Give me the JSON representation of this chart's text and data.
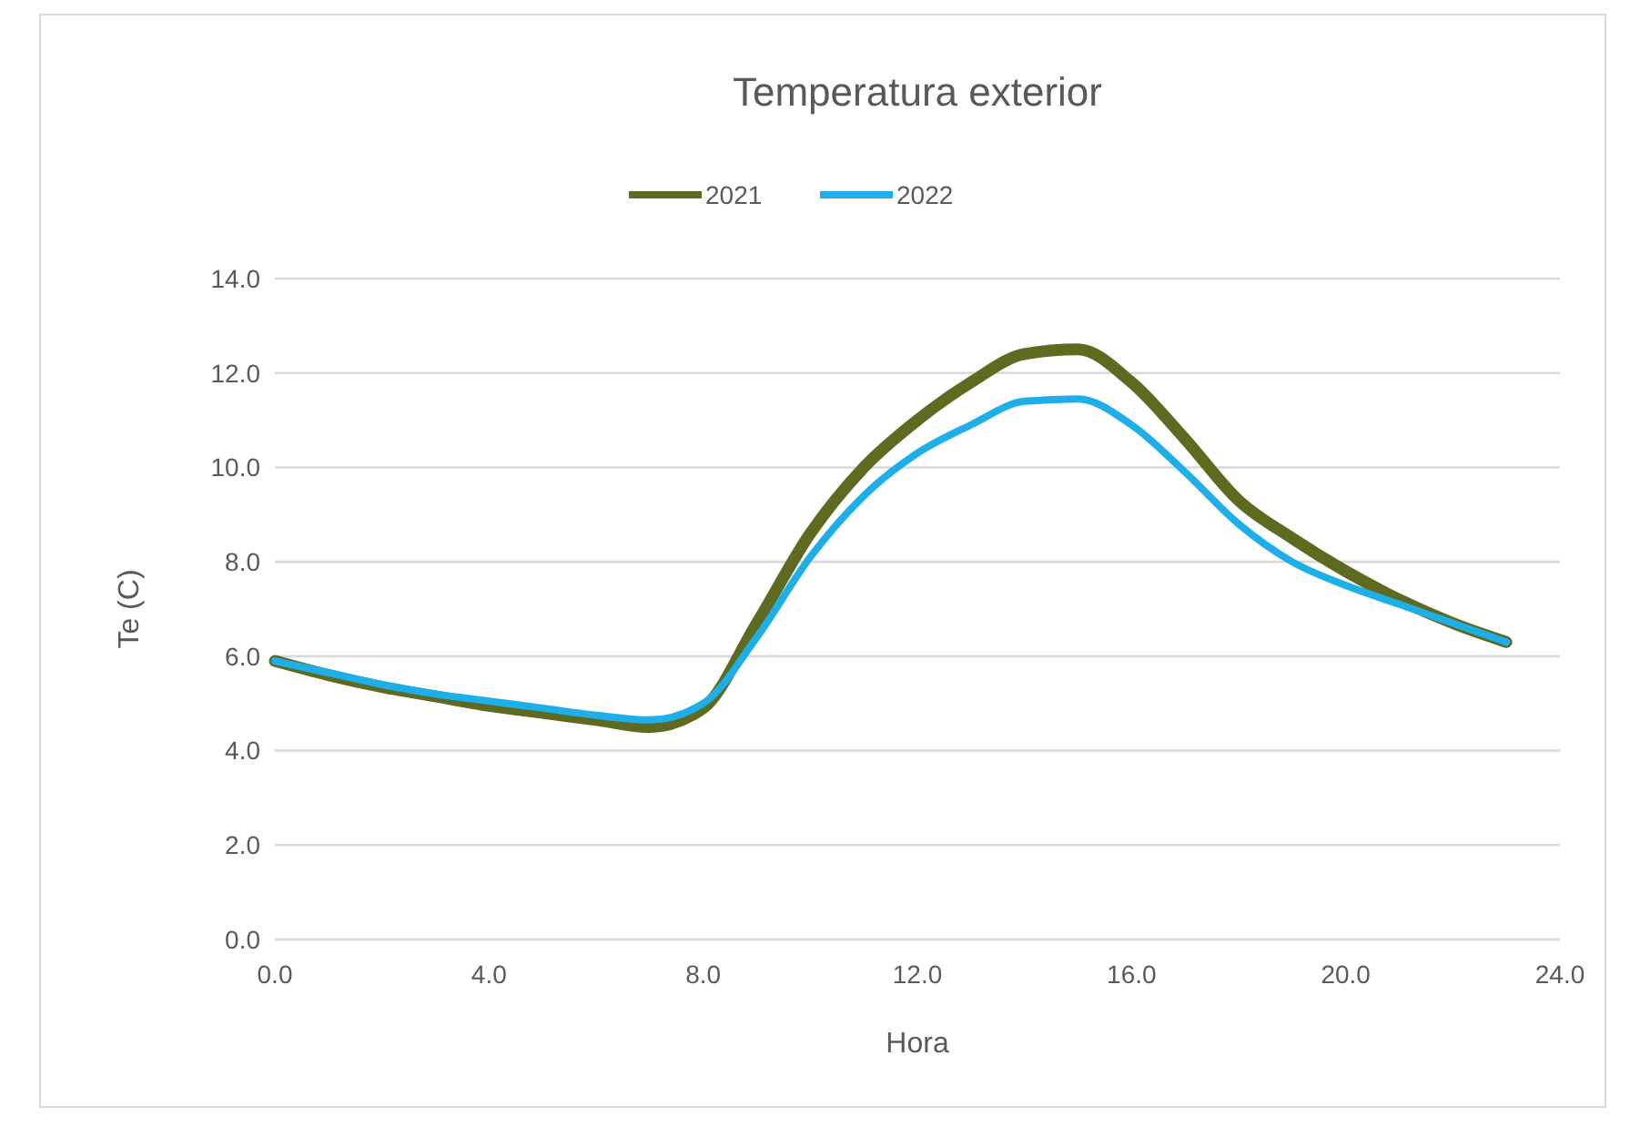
{
  "chart_data": {
    "type": "line",
    "title": "Temperatura exterior",
    "xlabel": "Hora",
    "ylabel": "Te (C)",
    "x": [
      0,
      1,
      2,
      3,
      4,
      5,
      6,
      7,
      8,
      9,
      10,
      11,
      12,
      13,
      14,
      15,
      16,
      17,
      18,
      19,
      20,
      21,
      22,
      23
    ],
    "series": [
      {
        "name": "2021",
        "color": "#5e6a1f",
        "values": [
          5.9,
          5.6,
          5.35,
          5.15,
          4.95,
          4.8,
          4.65,
          4.5,
          4.9,
          6.7,
          8.6,
          10.0,
          11.0,
          11.8,
          12.4,
          12.5,
          11.8,
          10.6,
          9.3,
          8.5,
          7.8,
          7.2,
          6.7,
          6.3
        ]
      },
      {
        "name": "2022",
        "color": "#1eaee8",
        "values": [
          5.9,
          5.65,
          5.4,
          5.2,
          5.05,
          4.9,
          4.75,
          4.65,
          5.0,
          6.4,
          8.1,
          9.4,
          10.3,
          10.9,
          11.4,
          11.45,
          10.9,
          9.9,
          8.8,
          8.0,
          7.5,
          7.1,
          6.7,
          6.3
        ]
      }
    ],
    "xlim": [
      0,
      24
    ],
    "xticks": [
      {
        "value": 0,
        "label": "0.0"
      },
      {
        "value": 4,
        "label": "4.0"
      },
      {
        "value": 8,
        "label": "8.0"
      },
      {
        "value": 12,
        "label": "12.0"
      },
      {
        "value": 16,
        "label": "16.0"
      },
      {
        "value": 20,
        "label": "20.0"
      },
      {
        "value": 24,
        "label": "24.0"
      }
    ],
    "ylim": [
      0,
      14
    ],
    "yticks": [
      {
        "value": 0,
        "label": "0.0"
      },
      {
        "value": 2,
        "label": "2.0"
      },
      {
        "value": 4,
        "label": "4.0"
      },
      {
        "value": 6,
        "label": "6.0"
      },
      {
        "value": 8,
        "label": "8.0"
      },
      {
        "value": 10,
        "label": "10.0"
      },
      {
        "value": 12,
        "label": "12.0"
      },
      {
        "value": 14,
        "label": "14.0"
      }
    ],
    "grid": "y",
    "legend": "top",
    "marker": "none",
    "line_style": "solid"
  }
}
